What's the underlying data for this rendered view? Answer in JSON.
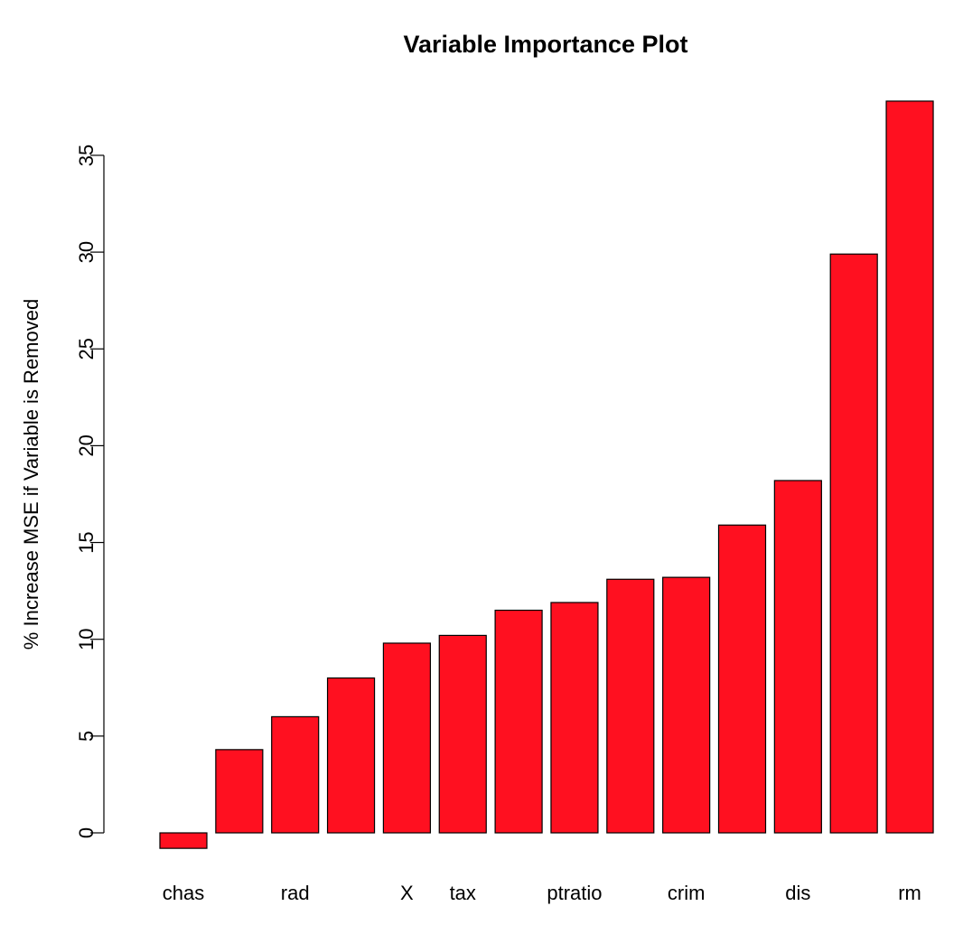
{
  "chart_data": {
    "type": "bar",
    "title": "Variable Importance Plot",
    "xlabel": "",
    "ylabel": "% Increase MSE if Variable is Removed",
    "ylim": [
      -1,
      38
    ],
    "yticks": [
      0,
      5,
      10,
      15,
      20,
      25,
      30,
      35
    ],
    "grid": false,
    "legend": "none",
    "bar_color": "#FF1020",
    "edge_color": "#000000",
    "categories": [
      "chas",
      "",
      "rad",
      "",
      "X",
      "tax",
      "",
      "ptratio",
      "",
      "crim",
      "",
      "dis",
      "",
      "rm"
    ],
    "values": [
      -0.8,
      4.3,
      6.0,
      8.0,
      9.8,
      10.2,
      11.5,
      11.9,
      13.1,
      13.2,
      15.9,
      18.2,
      29.9,
      37.8
    ]
  }
}
